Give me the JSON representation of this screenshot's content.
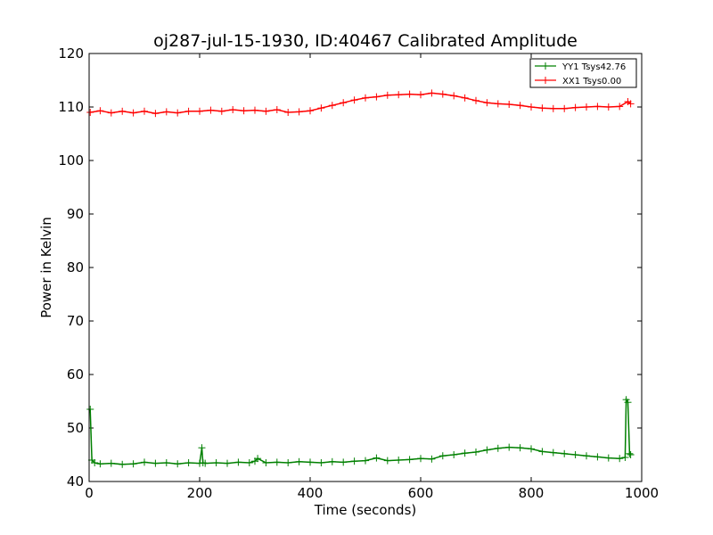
{
  "chart_data": {
    "type": "line",
    "title": "oj287-jul-15-1930, ID:40467 Calibrated Amplitude",
    "xlabel": "Time (seconds)",
    "ylabel": "Power in Kelvin",
    "xlim": [
      0,
      1000
    ],
    "ylim": [
      40,
      120
    ],
    "xticks": [
      0,
      200,
      400,
      600,
      800,
      1000
    ],
    "yticks": [
      40,
      50,
      60,
      70,
      80,
      90,
      100,
      110,
      120
    ],
    "grid": false,
    "legend_position": "top-right",
    "marker": "+",
    "series": [
      {
        "name": "YY1 Tsys42.76",
        "color": "#008000",
        "x": [
          2,
          5,
          10,
          20,
          40,
          60,
          80,
          100,
          120,
          140,
          160,
          180,
          200,
          204,
          206,
          210,
          230,
          250,
          270,
          290,
          300,
          305,
          320,
          340,
          360,
          380,
          400,
          420,
          440,
          460,
          480,
          500,
          520,
          540,
          560,
          580,
          600,
          620,
          640,
          660,
          680,
          700,
          720,
          740,
          760,
          780,
          800,
          820,
          840,
          860,
          880,
          900,
          920,
          940,
          960,
          970,
          972,
          975,
          978,
          980
        ],
        "y": [
          53.5,
          44.0,
          43.5,
          43.3,
          43.4,
          43.2,
          43.3,
          43.6,
          43.4,
          43.5,
          43.3,
          43.5,
          43.4,
          46.3,
          43.5,
          43.4,
          43.5,
          43.4,
          43.6,
          43.5,
          43.8,
          44.3,
          43.5,
          43.6,
          43.5,
          43.7,
          43.6,
          43.5,
          43.7,
          43.6,
          43.8,
          43.9,
          44.4,
          43.9,
          44.0,
          44.1,
          44.3,
          44.2,
          44.8,
          45.0,
          45.3,
          45.5,
          45.9,
          46.2,
          46.4,
          46.3,
          46.1,
          45.6,
          45.4,
          45.2,
          45.0,
          44.8,
          44.6,
          44.4,
          44.3,
          44.5,
          55.3,
          54.8,
          45.2,
          45.0
        ]
      },
      {
        "name": "XX1 Tsys0.00",
        "color": "#ff0000",
        "x": [
          2,
          20,
          40,
          60,
          80,
          100,
          120,
          140,
          160,
          180,
          200,
          220,
          240,
          260,
          280,
          300,
          320,
          340,
          360,
          380,
          400,
          420,
          440,
          460,
          480,
          500,
          520,
          540,
          560,
          580,
          600,
          620,
          640,
          660,
          680,
          700,
          720,
          740,
          760,
          780,
          800,
          820,
          840,
          860,
          880,
          900,
          920,
          940,
          960,
          975,
          980
        ],
        "y": [
          109.0,
          109.3,
          108.9,
          109.2,
          108.9,
          109.2,
          108.8,
          109.1,
          108.9,
          109.2,
          109.2,
          109.4,
          109.2,
          109.5,
          109.3,
          109.4,
          109.2,
          109.5,
          109.0,
          109.1,
          109.3,
          109.8,
          110.3,
          110.8,
          111.3,
          111.7,
          111.9,
          112.2,
          112.3,
          112.4,
          112.3,
          112.6,
          112.4,
          112.1,
          111.7,
          111.2,
          110.8,
          110.6,
          110.5,
          110.3,
          110.0,
          109.8,
          109.7,
          109.7,
          109.9,
          110.0,
          110.1,
          110.0,
          110.1,
          111.0,
          110.6
        ]
      }
    ]
  }
}
